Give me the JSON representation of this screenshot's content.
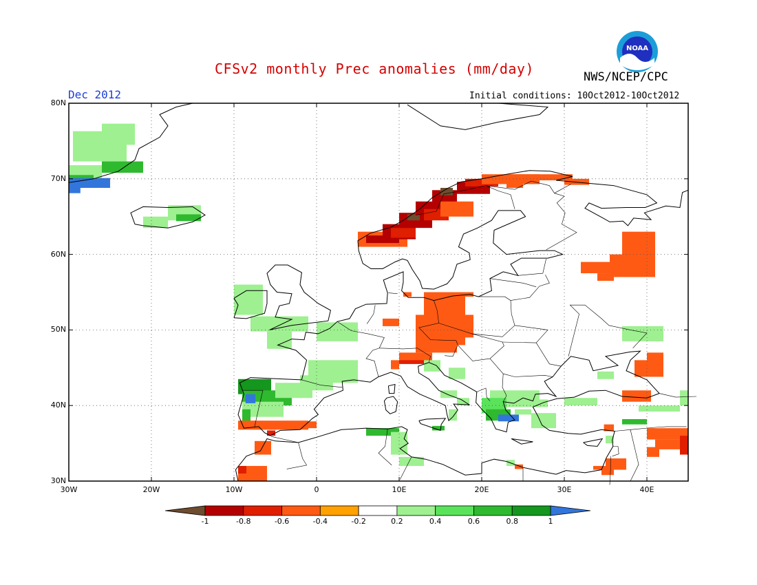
{
  "header": {
    "title": "CFSv2 monthly Prec anomalies (mm/day)",
    "agency": "NWS/NCEP/CPC",
    "month": "Dec 2012",
    "initial_conditions": "Initial conditions: 10Oct2012-10Oct2012",
    "logo_text": "NOAA"
  },
  "axes": {
    "lat_labels": [
      "80N",
      "70N",
      "60N",
      "50N",
      "40N",
      "30N"
    ],
    "lon_labels": [
      "30W",
      "20W",
      "10W",
      "0",
      "10E",
      "20E",
      "30E",
      "40E"
    ]
  },
  "colorbar": {
    "labels": [
      "-1",
      "-0.8",
      "-0.6",
      "-0.4",
      "-0.2",
      "0.2",
      "0.4",
      "0.6",
      "0.8",
      "1"
    ],
    "colors": [
      "#6e4c2e",
      "#b40000",
      "#e01e00",
      "#ff5a14",
      "#ffa100",
      "#ffffff",
      "#9ef090",
      "#5ae35a",
      "#2fb92f",
      "#15961e",
      "#3276dc"
    ]
  }
}
